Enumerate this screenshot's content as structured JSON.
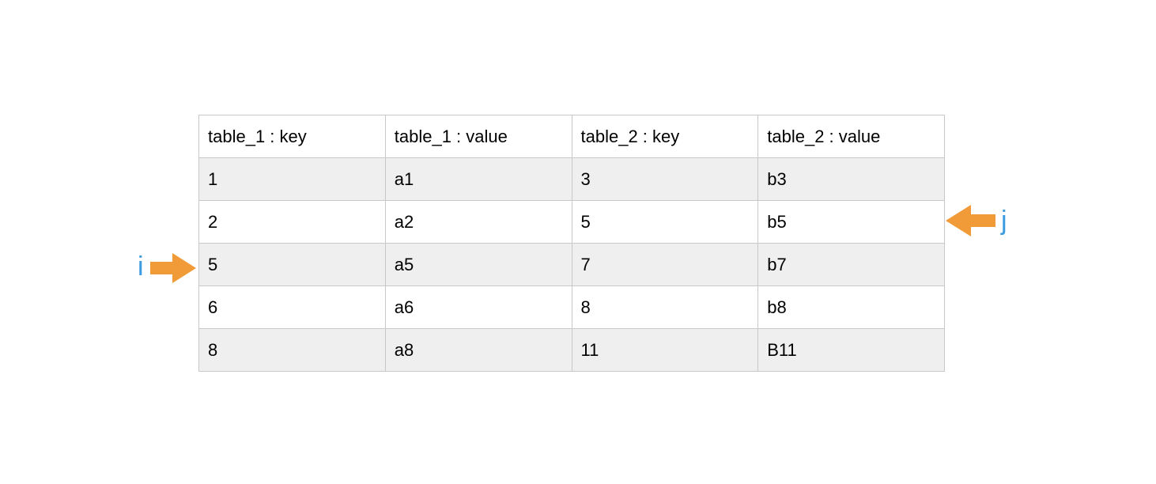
{
  "table": {
    "headers": [
      "table_1 : key",
      "table_1 : value",
      "table_2 : key",
      "table_2 : value"
    ],
    "rows": [
      [
        "1",
        "a1",
        "3",
        "b3"
      ],
      [
        "2",
        "a2",
        "5",
        "b5"
      ],
      [
        "5",
        "a5",
        "7",
        "b7"
      ],
      [
        "6",
        "a6",
        "8",
        "b8"
      ],
      [
        "8",
        "a8",
        "11",
        "B11"
      ]
    ]
  },
  "pointers": {
    "i": {
      "label": "i",
      "row_index": 3,
      "direction": "right"
    },
    "j": {
      "label": "j",
      "row_index": 2,
      "direction": "left"
    }
  },
  "colors": {
    "arrow": "#f09a38",
    "label": "#3d9be0",
    "row_shade": "#efefef",
    "border": "#c8c8c8"
  }
}
